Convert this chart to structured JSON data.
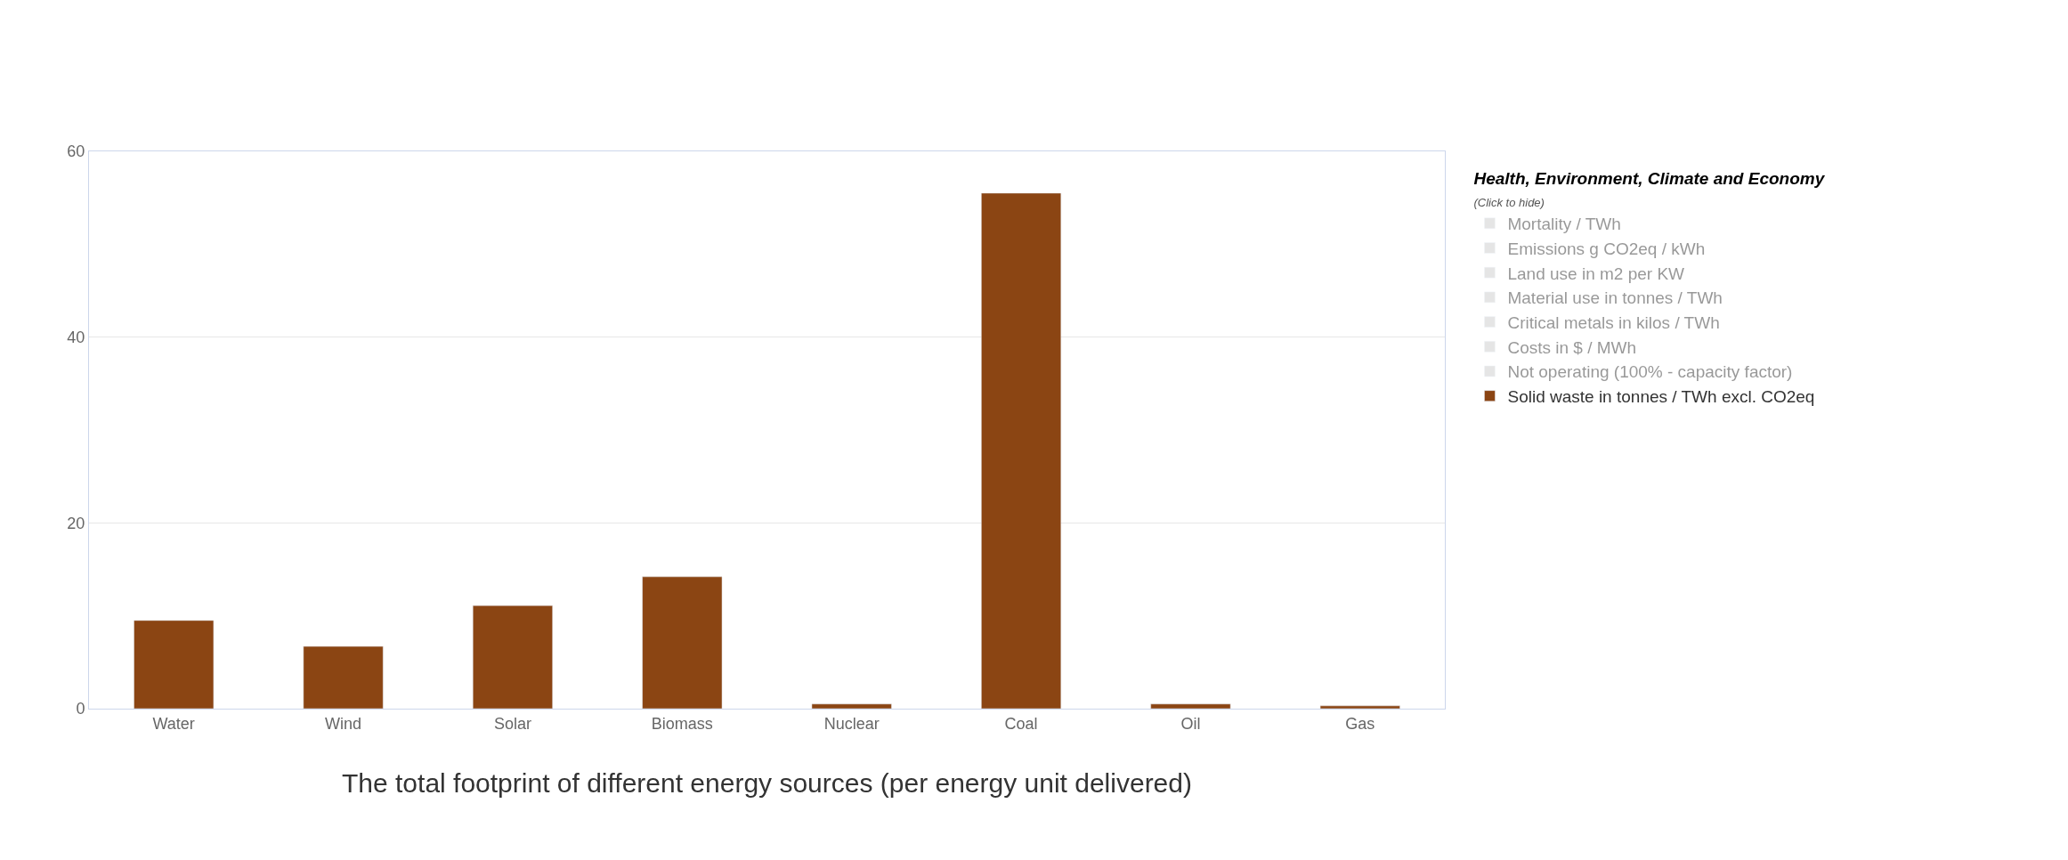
{
  "chart_data": {
    "type": "bar",
    "title": "The total footprint of different energy sources (per energy unit delivered)",
    "legend_title": "Health, Environment, Climate and Economy\n(Click to hide)",
    "categories": [
      "Water",
      "Wind",
      "Solar",
      "Biomass",
      "Nuclear",
      "Coal",
      "Oil",
      "Gas"
    ],
    "series": [
      {
        "name": "Mortality / TWh",
        "color": "#cccccc",
        "values": [
          null,
          null,
          null,
          null,
          null,
          null,
          null,
          null
        ]
      },
      {
        "name": "Emissions g CO2eq / kWh",
        "color": "#cccccc",
        "values": [
          null,
          null,
          null,
          null,
          null,
          null,
          null,
          null
        ]
      },
      {
        "name": "Land use in m2 per KW",
        "color": "#cccccc",
        "values": [
          null,
          null,
          null,
          null,
          null,
          null,
          null,
          null
        ]
      },
      {
        "name": "Material use in tonnes / TWh",
        "color": "#cccccc",
        "values": [
          null,
          null,
          null,
          null,
          null,
          null,
          null,
          null
        ]
      },
      {
        "name": "Critical metals in kilos / TWh",
        "color": "#cccccc",
        "values": [
          null,
          null,
          null,
          null,
          null,
          null,
          null,
          null
        ]
      },
      {
        "name": "Costs in $ / MWh",
        "color": "#cccccc",
        "values": [
          null,
          null,
          null,
          null,
          null,
          null,
          null,
          null
        ]
      },
      {
        "name": "Not operating (100% - capacity factor)",
        "color": "#cccccc",
        "values": [
          null,
          null,
          null,
          null,
          null,
          null,
          null,
          null
        ]
      },
      {
        "name": "Solid waste in tonnes / TWh excl. CO2eq",
        "color": "#8b4513",
        "values": [
          9.5,
          6.7,
          11.1,
          14.2,
          0.5,
          55.5,
          0.5,
          0.3
        ]
      }
    ],
    "ylim": [
      0,
      60
    ],
    "yticks": [
      0,
      20,
      40,
      60
    ],
    "grid": "y",
    "legend": "right"
  }
}
